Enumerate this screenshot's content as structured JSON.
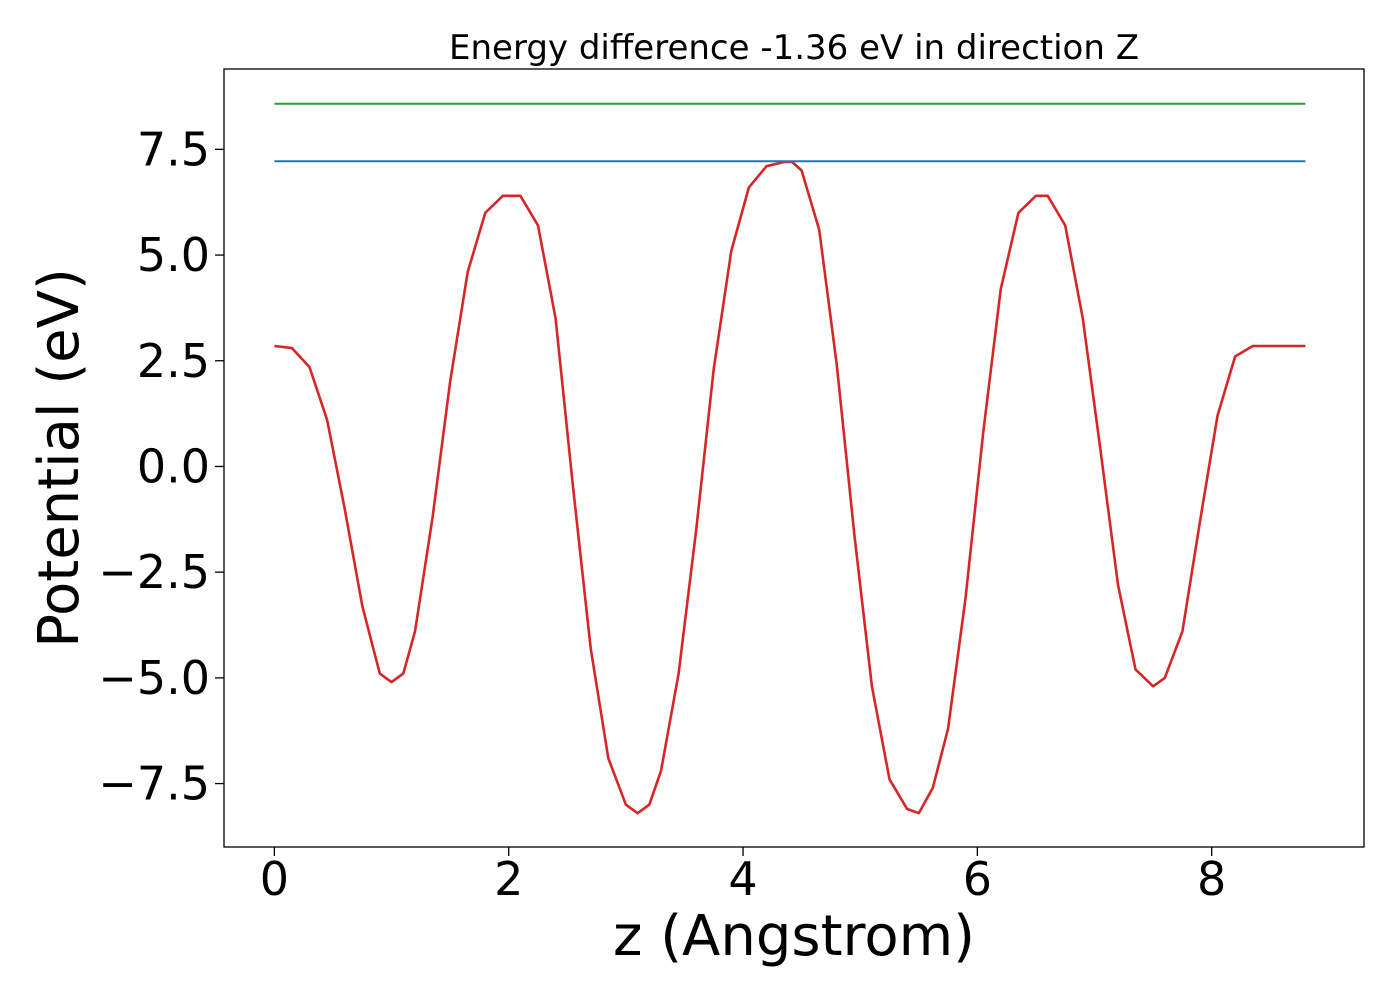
{
  "chart_data": {
    "type": "line",
    "title": "Energy difference -1.36 eV in direction Z",
    "xlabel": "z (Angstrom)",
    "ylabel": "Potential (eV)",
    "xlim": [
      -0.43,
      9.3
    ],
    "ylim": [
      -9.0,
      9.4
    ],
    "xticks": [
      0,
      2,
      4,
      6,
      8
    ],
    "yticks": [
      -7.5,
      -5.0,
      -2.5,
      0.0,
      2.5,
      5.0,
      7.5
    ],
    "xtick_labels": [
      "0",
      "2",
      "4",
      "6",
      "8"
    ],
    "ytick_labels": [
      "−7.5",
      "−5.0",
      "−2.5",
      "0.0",
      "2.5",
      "5.0",
      "7.5"
    ],
    "grid": false,
    "legend": "none",
    "series": [
      {
        "color": "#d62728",
        "x": [
          0.0,
          0.15,
          0.3,
          0.45,
          0.6,
          0.75,
          0.9,
          1.0,
          1.1,
          1.2,
          1.35,
          1.5,
          1.65,
          1.8,
          1.95,
          2.1,
          2.25,
          2.4,
          2.55,
          2.7,
          2.85,
          3.0,
          3.1,
          3.2,
          3.3,
          3.45,
          3.6,
          3.75,
          3.9,
          4.05,
          4.2,
          4.35,
          4.42,
          4.5,
          4.65,
          4.8,
          4.95,
          5.1,
          5.25,
          5.4,
          5.5,
          5.62,
          5.75,
          5.9,
          6.05,
          6.2,
          6.35,
          6.5,
          6.6,
          6.75,
          6.9,
          7.05,
          7.2,
          7.35,
          7.5,
          7.6,
          7.75,
          7.9,
          8.05,
          8.2,
          8.35,
          8.5,
          8.6,
          8.8
        ],
        "y": [
          2.85,
          2.8,
          2.35,
          1.1,
          -1.0,
          -3.3,
          -4.9,
          -5.1,
          -4.9,
          -3.9,
          -1.2,
          2.0,
          4.6,
          6.0,
          6.4,
          6.4,
          5.7,
          3.5,
          -0.5,
          -4.3,
          -6.9,
          -8.0,
          -8.2,
          -8.0,
          -7.2,
          -4.9,
          -1.5,
          2.3,
          5.1,
          6.6,
          7.1,
          7.2,
          7.2,
          7.0,
          5.6,
          2.4,
          -1.6,
          -5.2,
          -7.4,
          -8.1,
          -8.2,
          -7.6,
          -6.2,
          -3.1,
          0.8,
          4.2,
          6.0,
          6.4,
          6.4,
          5.7,
          3.5,
          0.4,
          -2.8,
          -4.8,
          -5.2,
          -5.0,
          -3.9,
          -1.3,
          1.2,
          2.6,
          2.85,
          2.85,
          2.85,
          2.85
        ]
      },
      {
        "color": "#1f77b4",
        "x": [
          0.0,
          8.8
        ],
        "y": [
          7.22,
          7.22
        ]
      },
      {
        "color": "#2ca02c",
        "x": [
          0.0,
          8.8
        ],
        "y": [
          8.58,
          8.58
        ]
      }
    ]
  }
}
